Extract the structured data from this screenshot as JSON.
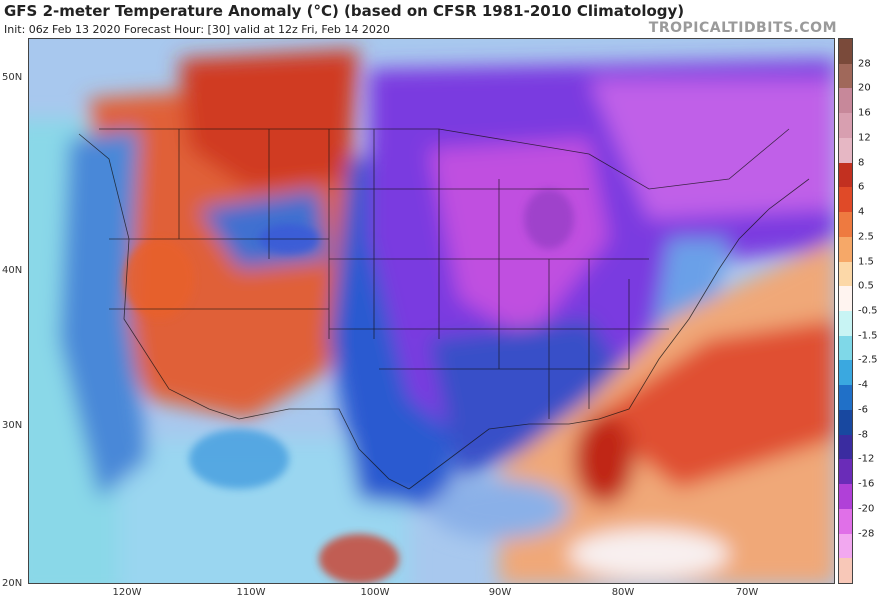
{
  "header": {
    "title": "GFS 2-meter Temperature Anomaly (°C) (based on CFSR 1981-2010 Climatology)",
    "subtitle": "Init: 06z Feb 13 2020   Forecast Hour: [30]   valid at 12z Fri, Feb 14 2020",
    "brand": "TROPICALTIDBITS.COM"
  },
  "map": {
    "lat_labels": [
      "50N",
      "40N",
      "30N",
      "20N"
    ],
    "lon_labels": [
      "120W",
      "110W",
      "100W",
      "90W",
      "80W",
      "70W"
    ]
  },
  "colorbar": {
    "labels": [
      "28",
      "20",
      "16",
      "12",
      "8",
      "6",
      "4",
      "2.5",
      "1.5",
      "0.5",
      "-0.5",
      "-1.5",
      "-2.5",
      "-4",
      "-6",
      "-8",
      "-12",
      "-16",
      "-20",
      "-28"
    ],
    "colors": [
      "#7a4a3a",
      "#a0685a",
      "#c7889a",
      "#d89fb0",
      "#e6b7c4",
      "#c23020",
      "#e04a28",
      "#ee7a40",
      "#f6a868",
      "#fcd8a8",
      "#fff4f0",
      "#c8f4f4",
      "#7fd8e8",
      "#3aa8e0",
      "#2070c8",
      "#1848a0",
      "#3a2ca0",
      "#6a2cb8",
      "#b040d8",
      "#e070e8",
      "#f2a8f0",
      "#f8c8b8"
    ]
  }
}
